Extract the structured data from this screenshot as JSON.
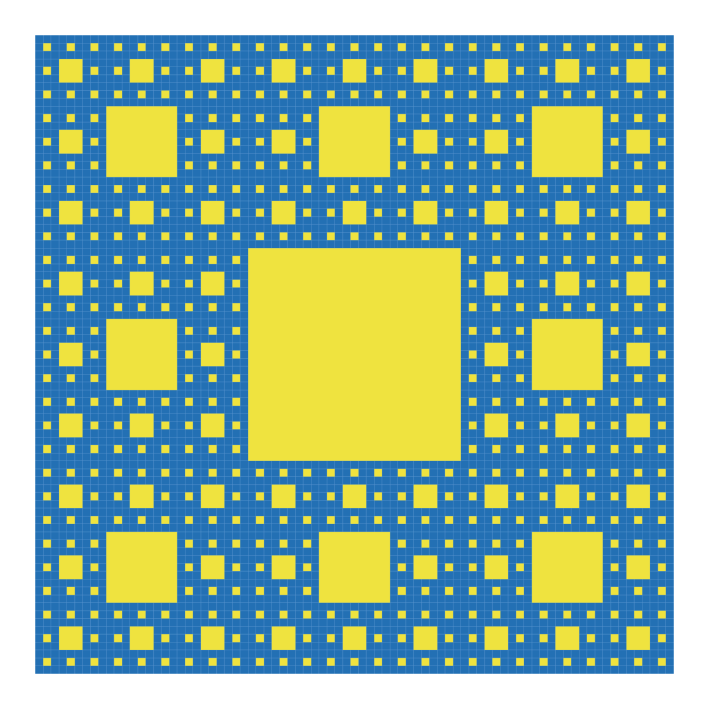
{
  "figure": {
    "kind": "sierpinski-carpet",
    "grid_cells": 81,
    "recursion_levels": 4,
    "colors": {
      "background": "#ffffff",
      "filled": "#2370b4",
      "removed": "#efe33f",
      "grid_line": "#5a95cf"
    },
    "grid_lines_visible": true
  }
}
